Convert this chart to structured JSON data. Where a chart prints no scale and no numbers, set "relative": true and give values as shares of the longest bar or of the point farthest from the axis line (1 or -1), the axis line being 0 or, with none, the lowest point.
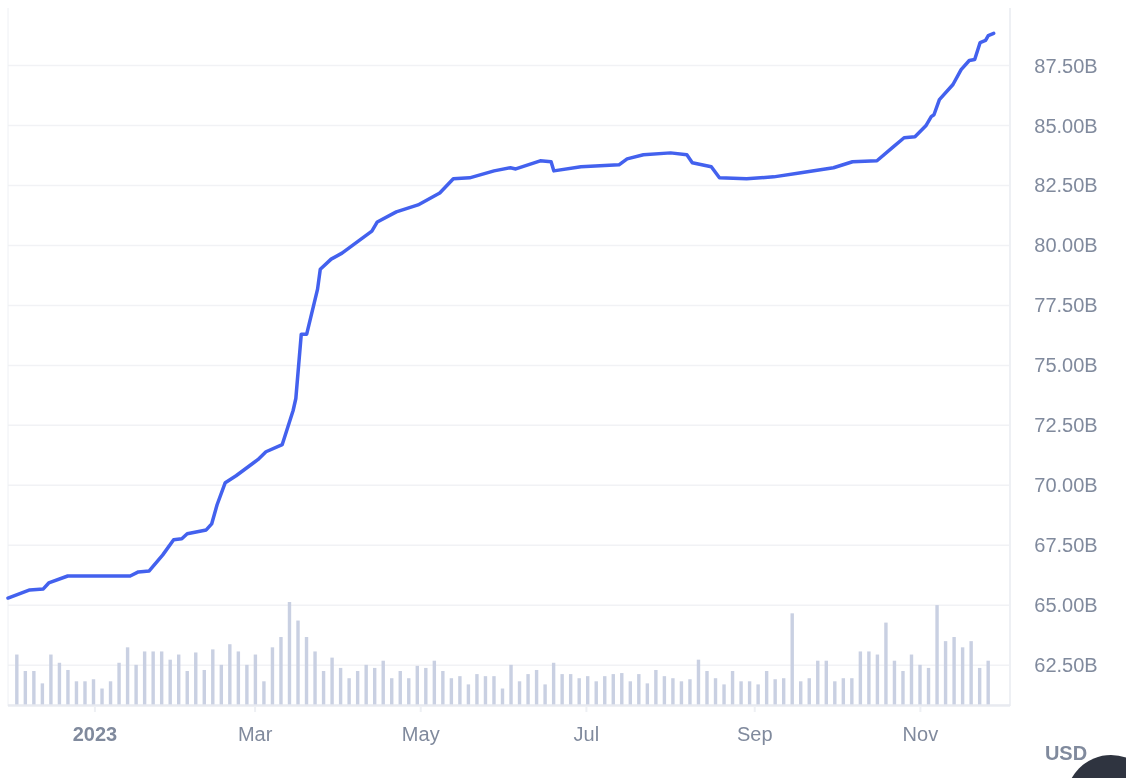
{
  "chart_data": [
    {
      "type": "line",
      "ylabel": "USD",
      "grid": "y",
      "marker": "none",
      "line_style": "solid",
      "xlim": [
        "2022-11-30",
        "2023-12-04"
      ],
      "ylim": [
        60.8,
        89.9
      ],
      "xticks": [
        {
          "value": "2023-01-01",
          "label": "2023"
        },
        {
          "value": "2023-03-01",
          "label": "Mar"
        },
        {
          "value": "2023-05-01",
          "label": "May"
        },
        {
          "value": "2023-07-01",
          "label": "Jul"
        },
        {
          "value": "2023-09-01",
          "label": "Sep"
        },
        {
          "value": "2023-11-01",
          "label": "Nov"
        }
      ],
      "yticks": [
        {
          "value": 62.5,
          "label": "62.50B"
        },
        {
          "value": 65,
          "label": "65.00B"
        },
        {
          "value": 67.5,
          "label": "67.50B"
        },
        {
          "value": 70,
          "label": "70.00B"
        },
        {
          "value": 72.5,
          "label": "72.50B"
        },
        {
          "value": 75,
          "label": "75.00B"
        },
        {
          "value": 77.5,
          "label": "77.50B"
        },
        {
          "value": 80,
          "label": "80.00B"
        },
        {
          "value": 82.5,
          "label": "82.50B"
        },
        {
          "value": 85,
          "label": "85.00B"
        },
        {
          "value": 87.5,
          "label": "87.50B"
        }
      ],
      "series": [
        {
          "color": "#4361ee",
          "x": [
            "2022-11-30",
            "2022-12-08",
            "2022-12-13",
            "2022-12-15",
            "2022-12-22",
            "2023-01-14",
            "2023-01-17",
            "2023-01-21",
            "2023-01-26",
            "2023-01-30",
            "2023-02-02",
            "2023-02-04",
            "2023-02-11",
            "2023-02-13",
            "2023-02-15",
            "2023-02-18",
            "2023-02-22",
            "2023-03-02",
            "2023-03-05",
            "2023-03-11",
            "2023-03-15",
            "2023-03-16",
            "2023-03-18",
            "2023-03-20",
            "2023-03-24",
            "2023-03-25",
            "2023-03-29",
            "2023-04-02",
            "2023-04-08",
            "2023-04-13",
            "2023-04-15",
            "2023-04-22",
            "2023-04-30",
            "2023-05-08",
            "2023-05-13",
            "2023-05-19",
            "2023-05-28",
            "2023-06-03",
            "2023-06-05",
            "2023-06-14",
            "2023-06-18",
            "2023-06-19",
            "2023-06-29",
            "2023-07-13",
            "2023-07-16",
            "2023-07-22",
            "2023-08-01",
            "2023-08-07",
            "2023-08-09",
            "2023-08-16",
            "2023-08-19",
            "2023-08-29",
            "2023-09-08",
            "2023-09-18",
            "2023-09-30",
            "2023-10-07",
            "2023-10-16",
            "2023-10-22",
            "2023-10-26",
            "2023-10-30",
            "2023-11-03",
            "2023-11-05",
            "2023-11-06",
            "2023-11-08",
            "2023-11-13",
            "2023-11-16",
            "2023-11-19",
            "2023-11-21",
            "2023-11-23",
            "2023-11-25",
            "2023-11-26",
            "2023-11-28"
          ],
          "values": [
            65.3,
            65.64,
            65.68,
            65.93,
            66.22,
            66.22,
            66.39,
            66.43,
            67.1,
            67.73,
            67.77,
            67.98,
            68.14,
            68.39,
            69.19,
            70.11,
            70.4,
            71.07,
            71.4,
            71.7,
            73.12,
            73.62,
            76.3,
            76.3,
            78.18,
            79.01,
            79.43,
            79.68,
            80.18,
            80.6,
            80.98,
            81.4,
            81.69,
            82.19,
            82.78,
            82.82,
            83.11,
            83.24,
            83.19,
            83.53,
            83.49,
            83.11,
            83.28,
            83.36,
            83.61,
            83.78,
            83.86,
            83.78,
            83.45,
            83.28,
            82.82,
            82.78,
            82.86,
            83.03,
            83.24,
            83.49,
            83.53,
            84.11,
            84.49,
            84.53,
            84.99,
            85.37,
            85.45,
            86.08,
            86.71,
            87.33,
            87.71,
            87.75,
            88.46,
            88.55,
            88.75,
            88.84
          ]
        }
      ]
    },
    {
      "type": "bar",
      "relative": true,
      "categories": [
        null,
        null,
        null,
        null,
        null,
        null,
        null,
        null,
        null,
        null,
        null,
        null,
        null,
        null,
        null,
        null,
        null,
        null,
        null,
        null,
        null,
        null,
        null,
        null,
        null,
        null,
        null,
        null,
        null,
        null,
        null,
        null,
        null,
        null,
        null,
        null,
        null,
        null,
        null,
        null,
        null,
        null,
        null,
        null,
        null,
        null,
        null,
        null,
        null,
        null,
        null,
        null,
        null,
        null,
        null,
        null,
        null,
        null,
        null,
        null,
        null,
        null,
        null,
        null,
        null,
        null,
        null,
        null,
        null,
        null,
        null,
        null,
        null,
        null,
        null,
        null,
        null,
        null,
        null,
        null,
        null,
        null,
        null,
        null,
        null,
        null,
        null,
        null,
        null,
        null,
        null,
        null,
        null,
        null,
        null,
        null,
        null,
        null,
        null,
        null,
        null,
        null,
        null,
        null,
        null,
        null,
        null,
        null,
        null,
        null,
        null,
        null,
        null,
        null,
        null
      ],
      "series": [
        {
          "color": "#c9d0e2",
          "values": [
            0.49,
            0.33,
            0.33,
            0.21,
            0.49,
            0.41,
            0.34,
            0.23,
            0.23,
            0.25,
            0.16,
            0.23,
            0.41,
            0.56,
            0.39,
            0.52,
            0.52,
            0.52,
            0.44,
            0.49,
            0.33,
            0.51,
            0.34,
            0.54,
            0.39,
            0.59,
            0.52,
            0.39,
            0.49,
            0.23,
            0.56,
            0.66,
            1,
            0.82,
            0.66,
            0.52,
            0.33,
            0.46,
            0.36,
            0.26,
            0.33,
            0.39,
            0.36,
            0.43,
            0.26,
            0.33,
            0.26,
            0.38,
            0.36,
            0.43,
            0.33,
            0.26,
            0.28,
            0.2,
            0.3,
            0.28,
            0.28,
            0.16,
            0.39,
            0.23,
            0.3,
            0.34,
            0.2,
            0.41,
            0.3,
            0.3,
            0.26,
            0.28,
            0.23,
            0.28,
            0.3,
            0.31,
            0.23,
            0.3,
            0.21,
            0.34,
            0.28,
            0.26,
            0.23,
            0.25,
            0.44,
            0.33,
            0.26,
            0.2,
            0.33,
            0.23,
            0.23,
            0.2,
            0.33,
            0.25,
            0.26,
            0.89,
            0.23,
            0.26,
            0.43,
            0.43,
            0.23,
            0.26,
            0.26,
            0.52,
            0.52,
            0.49,
            0.8,
            0.43,
            0.33,
            0.49,
            0.39,
            0.36,
            0.97,
            0.62,
            0.66,
            0.56,
            0.62,
            0.36,
            0.43
          ]
        }
      ]
    }
  ]
}
